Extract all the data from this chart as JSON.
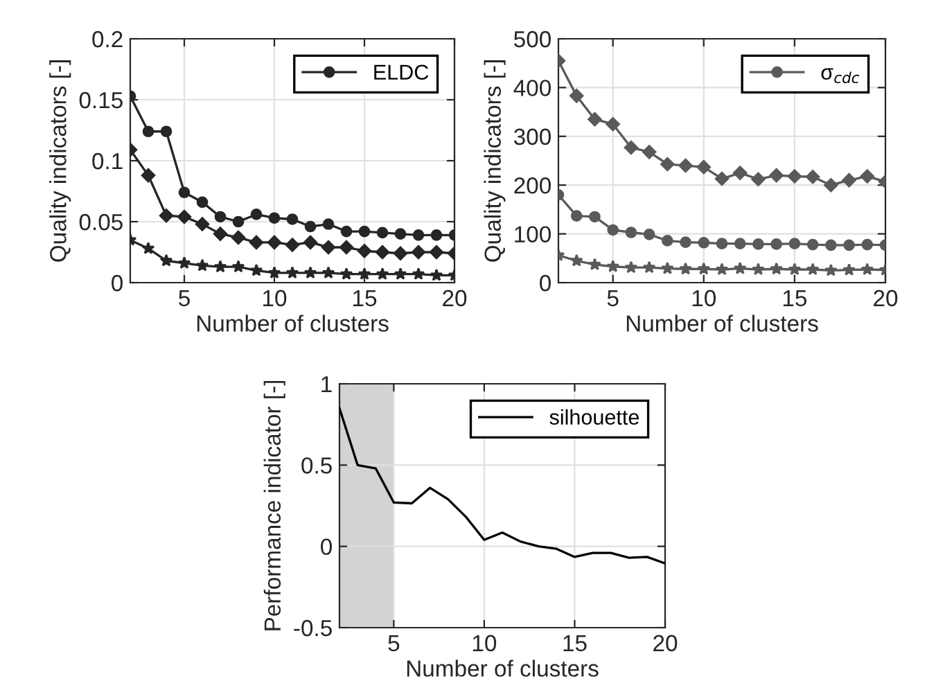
{
  "chart_data": [
    {
      "type": "line",
      "xlabel": "Number of clusters",
      "ylabel": "Quality indicators [-]",
      "x": [
        2,
        3,
        4,
        5,
        6,
        7,
        8,
        9,
        10,
        11,
        12,
        13,
        14,
        15,
        16,
        17,
        18,
        19,
        20
      ],
      "xlim": [
        2,
        20
      ],
      "xticks": [
        5,
        10,
        15,
        20
      ],
      "ylim": [
        0,
        0.2
      ],
      "yticks": [
        0,
        0.05,
        0.1,
        0.15,
        0.2
      ],
      "grid": true,
      "legend": "top right",
      "series": [
        {
          "name": "ELDC",
          "color": "#262626",
          "marker": "circle",
          "values": [
            0.153,
            0.124,
            0.124,
            0.074,
            0.066,
            0.054,
            0.05,
            0.056,
            0.053,
            0.052,
            0.046,
            0.048,
            0.042,
            0.042,
            0.041,
            0.04,
            0.039,
            0.039,
            0.039
          ]
        },
        {
          "color": "#262626",
          "marker": "diamond",
          "values": [
            0.109,
            0.088,
            0.055,
            0.054,
            0.048,
            0.04,
            0.037,
            0.033,
            0.033,
            0.031,
            0.033,
            0.029,
            0.029,
            0.026,
            0.025,
            0.024,
            0.025,
            0.025,
            0.024
          ]
        },
        {
          "color": "#262626",
          "marker": "star",
          "values": [
            0.035,
            0.028,
            0.018,
            0.016,
            0.014,
            0.013,
            0.013,
            0.01,
            0.008,
            0.008,
            0.008,
            0.008,
            0.007,
            0.007,
            0.007,
            0.007,
            0.007,
            0.006,
            0.006
          ]
        }
      ]
    },
    {
      "type": "line",
      "xlabel": "Number of clusters",
      "ylabel": "Quality indicators [-]",
      "x": [
        2,
        3,
        4,
        5,
        6,
        7,
        8,
        9,
        10,
        11,
        12,
        13,
        14,
        15,
        16,
        17,
        18,
        19,
        20
      ],
      "xlim": [
        2,
        20
      ],
      "xticks": [
        5,
        10,
        15,
        20
      ],
      "ylim": [
        0,
        500
      ],
      "yticks": [
        0,
        100,
        200,
        300,
        400,
        500
      ],
      "grid": true,
      "legend": "top right",
      "series": [
        {
          "color": "#5a5a5a",
          "marker": "diamond",
          "values": [
            455,
            383,
            335,
            325,
            277,
            268,
            243,
            240,
            237,
            213,
            225,
            212,
            220,
            218,
            217,
            200,
            210,
            218,
            207
          ]
        },
        {
          "name": "σ$_{cdc}$",
          "color": "#5a5a5a",
          "marker": "circle",
          "values": [
            180,
            137,
            135,
            108,
            103,
            99,
            86,
            83,
            82,
            80,
            80,
            79,
            79,
            80,
            78,
            77,
            77,
            78,
            77
          ]
        },
        {
          "color": "#5a5a5a",
          "marker": "star",
          "values": [
            56,
            45,
            37,
            33,
            31,
            31,
            29,
            28,
            28,
            27,
            29,
            27,
            28,
            27,
            27,
            25,
            26,
            27,
            26
          ]
        }
      ]
    },
    {
      "type": "line",
      "xlabel": "Number of clusters",
      "ylabel": "Performance indicator [-]",
      "x": [
        2,
        3,
        4,
        5,
        6,
        7,
        8,
        9,
        10,
        11,
        12,
        13,
        14,
        15,
        16,
        17,
        18,
        19,
        20
      ],
      "xlim": [
        2,
        20
      ],
      "xticks": [
        5,
        10,
        15,
        20
      ],
      "ylim": [
        -0.5,
        1
      ],
      "yticks": [
        -0.5,
        0,
        0.5,
        1
      ],
      "grid": true,
      "legend": "top right",
      "marker": "none",
      "bands": [
        {
          "axis": "x",
          "from": 2,
          "to": 5,
          "color": "#d3d3d3"
        }
      ],
      "series": [
        {
          "name": "silhouette",
          "color": "#000000",
          "values": [
            0.85,
            0.5,
            0.48,
            0.27,
            0.265,
            0.36,
            0.29,
            0.18,
            0.04,
            0.085,
            0.03,
            0.0,
            -0.015,
            -0.065,
            -0.04,
            -0.04,
            -0.07,
            -0.065,
            -0.105
          ]
        }
      ]
    }
  ]
}
